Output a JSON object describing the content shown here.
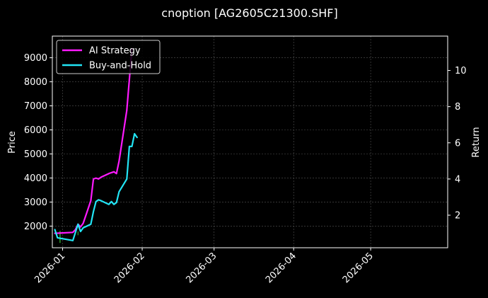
{
  "chart_data": {
    "type": "line",
    "title": "cnoption [AG2605C21300.SHF]",
    "xlabel": "",
    "ylabel_left": "Price",
    "ylabel_right": "Return",
    "x_ticks": [
      "2026-01",
      "2026-02",
      "2026-03",
      "2026-04",
      "2026-05"
    ],
    "x_range": [
      "2025-12-28",
      "2026-05-31"
    ],
    "y_left_ticks": [
      2000,
      3000,
      4000,
      5000,
      6000,
      7000,
      8000,
      9000
    ],
    "y_left_range": [
      1100,
      9900
    ],
    "y_right_ticks": [
      2,
      4,
      6,
      8,
      10
    ],
    "y_right_range": [
      0.2,
      11.9
    ],
    "grid": true,
    "legend_position": "top-left",
    "price_trace_color": "#2ca02c",
    "series": [
      {
        "name": "AI Strategy",
        "color": "#ff1aff",
        "axis": "right",
        "x": [
          "2025-12-29",
          "2026-01-05",
          "2026-01-06",
          "2026-01-07",
          "2026-01-08",
          "2026-01-09",
          "2026-01-12",
          "2026-01-13",
          "2026-01-14",
          "2026-01-15",
          "2026-01-16",
          "2026-01-19",
          "2026-01-20",
          "2026-01-21",
          "2026-01-22",
          "2026-01-23",
          "2026-01-26",
          "2026-01-27",
          "2026-01-28"
        ],
        "values": [
          1.0,
          1.05,
          1.2,
          1.5,
          1.35,
          1.55,
          2.8,
          4.0,
          4.05,
          4.0,
          4.1,
          4.3,
          4.35,
          4.4,
          4.3,
          5.0,
          7.8,
          9.5,
          11.2
        ]
      },
      {
        "name": "Buy-and-Hold",
        "color": "#22e5f5",
        "axis": "right",
        "x": [
          "2025-12-29",
          "2025-12-30",
          "2026-01-05",
          "2026-01-07",
          "2026-01-08",
          "2026-01-09",
          "2026-01-12",
          "2026-01-13",
          "2026-01-14",
          "2026-01-15",
          "2026-01-16",
          "2026-01-19",
          "2026-01-20",
          "2026-01-21",
          "2026-01-22",
          "2026-01-23",
          "2026-01-26",
          "2026-01-27",
          "2026-01-28",
          "2026-01-29",
          "2026-01-30"
        ],
        "values": [
          1.2,
          0.75,
          0.6,
          1.5,
          1.1,
          1.3,
          1.5,
          2.2,
          2.75,
          2.85,
          2.8,
          2.6,
          2.75,
          2.6,
          2.7,
          3.3,
          4.0,
          5.8,
          5.8,
          6.5,
          6.3
        ]
      }
    ]
  }
}
